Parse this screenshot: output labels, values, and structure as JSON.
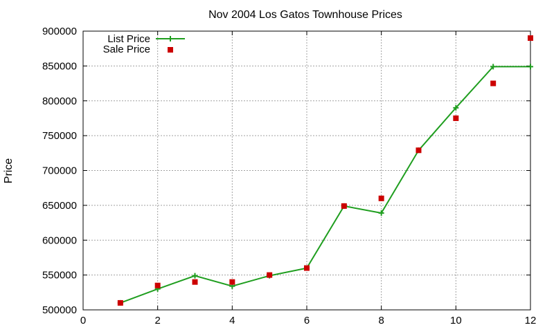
{
  "chart_data": {
    "type": "line",
    "title": "Nov 2004 Los Gatos Townhouse Prices",
    "xlabel": "",
    "ylabel": "Price",
    "xlim": [
      0,
      12
    ],
    "ylim": [
      500000,
      900000
    ],
    "x_ticks": [
      0,
      2,
      4,
      6,
      8,
      10,
      12
    ],
    "y_ticks": [
      500000,
      550000,
      600000,
      650000,
      700000,
      750000,
      800000,
      850000,
      900000
    ],
    "grid": true,
    "legend_position": "top-left",
    "series": [
      {
        "name": "List Price",
        "style": "line-with-plus-markers",
        "color": "#1f9e1f",
        "x": [
          1,
          2,
          3,
          4,
          5,
          6,
          7,
          8,
          9,
          10,
          11,
          12
        ],
        "y": [
          510000,
          530000,
          549000,
          534000,
          549000,
          560000,
          649000,
          639000,
          729000,
          790000,
          849000,
          849000
        ]
      },
      {
        "name": "Sale Price",
        "style": "square-markers",
        "color": "#cc0000",
        "x": [
          1,
          2,
          3,
          4,
          5,
          6,
          7,
          8,
          9,
          10,
          11,
          12
        ],
        "y": [
          510000,
          535000,
          540000,
          540000,
          550000,
          560000,
          649000,
          660000,
          729000,
          775000,
          825000,
          890000
        ]
      }
    ]
  }
}
